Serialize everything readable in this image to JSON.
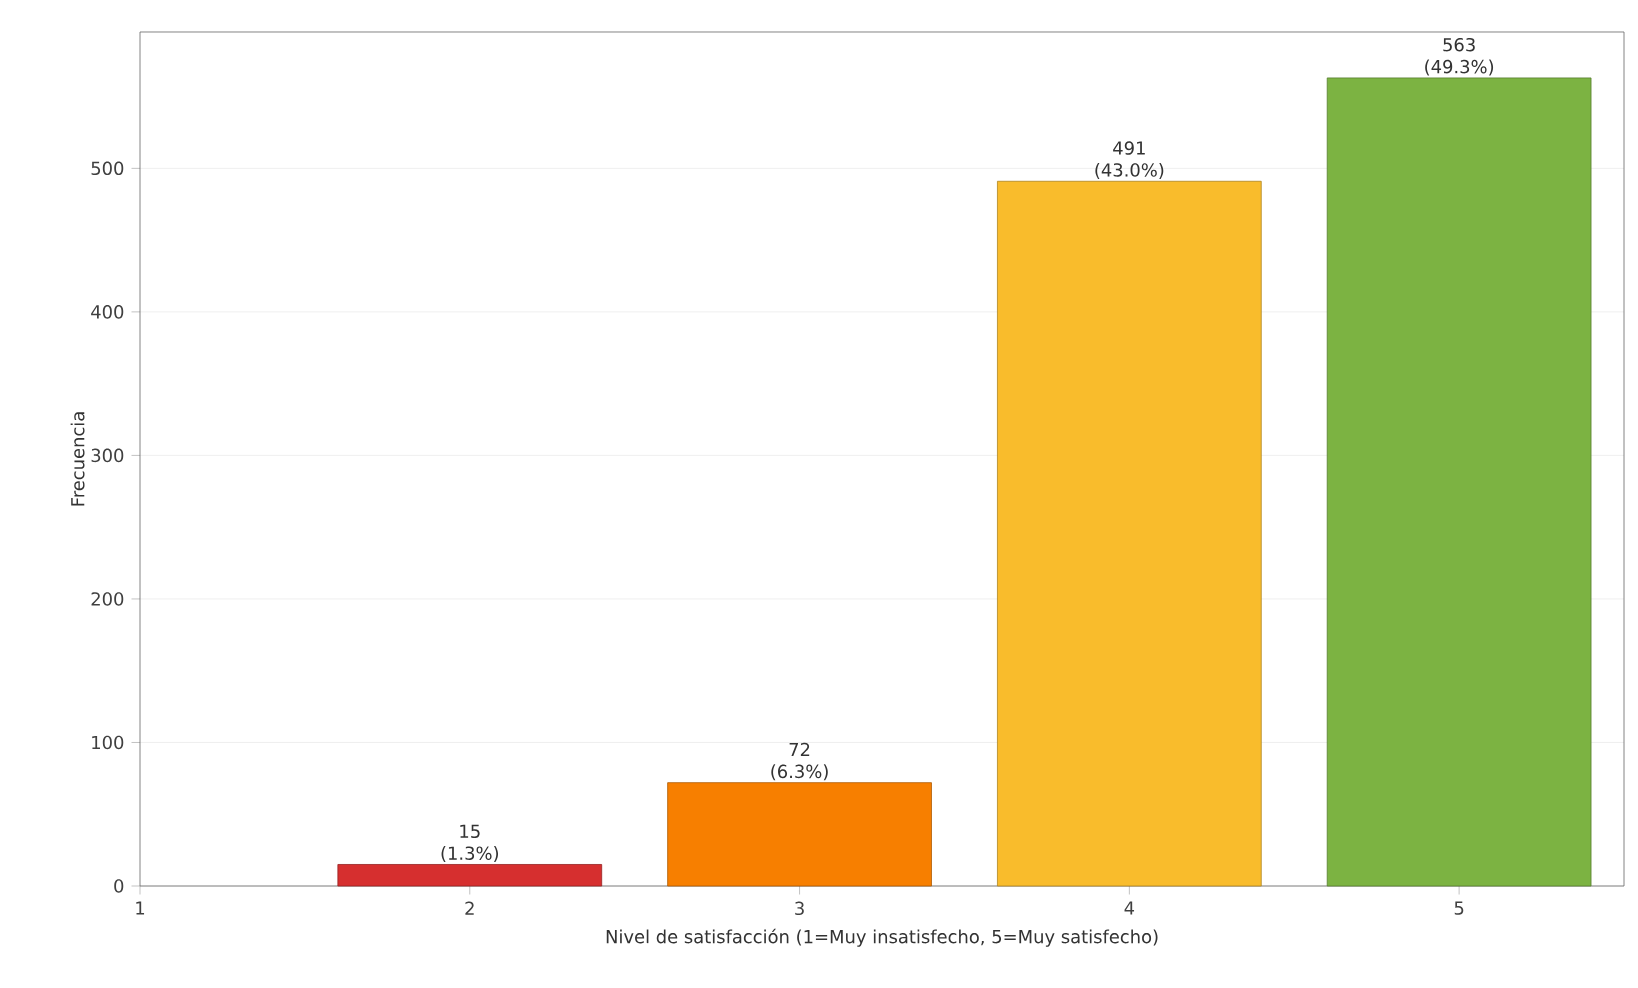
{
  "chart_data": {
    "type": "bar",
    "xlabel": "Nivel de satisfacción (1=Muy insatisfecho, 5=Muy satisfecho)",
    "ylabel": "Frecuencia",
    "x": [
      2,
      3,
      4,
      5
    ],
    "values": [
      15,
      72,
      491,
      563
    ],
    "colors": [
      "#d62f2f",
      "#f77f00",
      "#f9bc2c",
      "#7cb342"
    ],
    "value_labels": [
      "15 (1.3%)",
      "72 (6.3%)",
      "491 (43.0%)",
      "563 (49.3%)"
    ],
    "xlim": [
      1,
      5.5
    ],
    "xticks": [
      1,
      2,
      3,
      4,
      5
    ],
    "ylim": [
      0,
      595
    ],
    "yticks": [
      0,
      100,
      200,
      300,
      400,
      500
    ],
    "grid": "y"
  }
}
